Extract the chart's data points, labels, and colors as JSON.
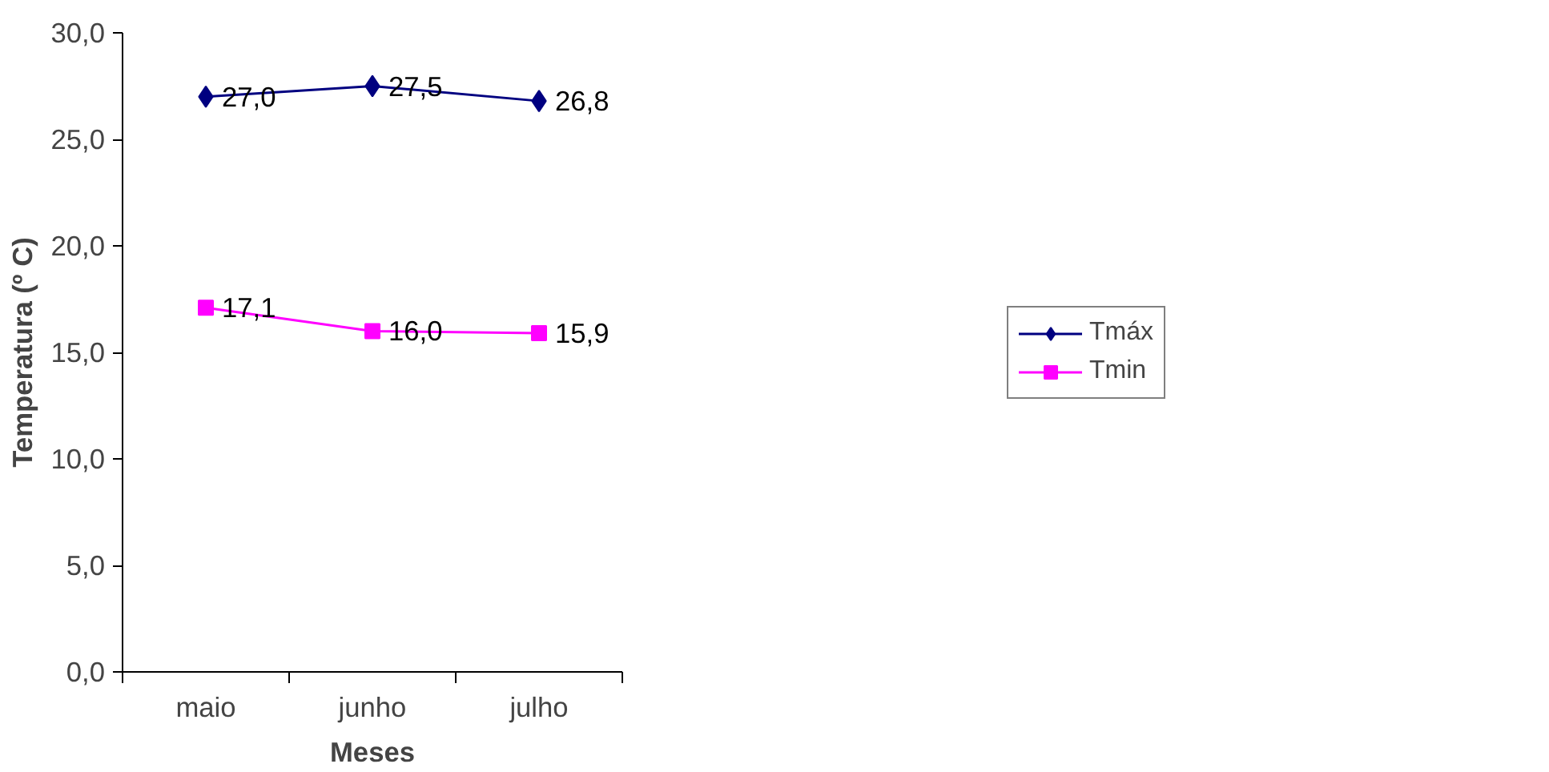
{
  "chart_data": {
    "type": "line",
    "xlabel": "Meses",
    "ylabel": "Temperatura (º C)",
    "categories": [
      "maio",
      "junho",
      "julho"
    ],
    "series": [
      {
        "name": "Tmáx",
        "color": "#000080",
        "marker": "diamond",
        "values": [
          27.0,
          27.5,
          26.8
        ],
        "value_labels": [
          "27,0",
          "27,5",
          "26,8"
        ]
      },
      {
        "name": "Tmin",
        "color": "#ff00ff",
        "marker": "square",
        "values": [
          17.1,
          16.0,
          15.9
        ],
        "value_labels": [
          "17,1",
          "16,0",
          "15,9"
        ]
      }
    ],
    "ylim": [
      0,
      30
    ],
    "yticks": [
      {
        "value": 0,
        "label": "0,0"
      },
      {
        "value": 5,
        "label": "5,0"
      },
      {
        "value": 10,
        "label": "10,0"
      },
      {
        "value": 15,
        "label": "15,0"
      },
      {
        "value": 20,
        "label": "20,0"
      },
      {
        "value": 25,
        "label": "25,0"
      },
      {
        "value": 30,
        "label": "30,0"
      }
    ],
    "grid": false,
    "legend": "right",
    "line_style": "solid"
  }
}
